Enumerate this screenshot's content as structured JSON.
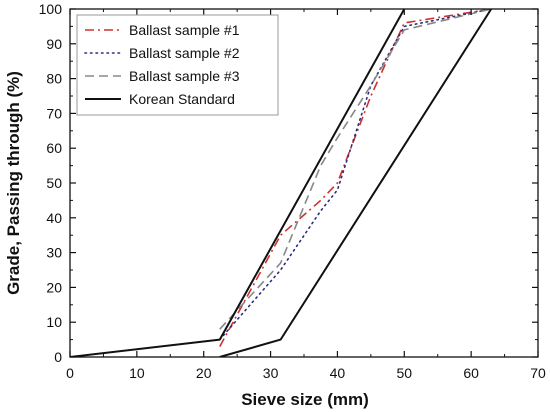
{
  "chart_data": {
    "type": "line",
    "title": "",
    "xlabel": "Sieve size (mm)",
    "ylabel": "Grade, Passing through (%)",
    "xlim": [
      0,
      70
    ],
    "ylim": [
      0,
      100
    ],
    "xticks": [
      0,
      10,
      20,
      30,
      40,
      50,
      60,
      70
    ],
    "yticks": [
      0,
      10,
      20,
      30,
      40,
      50,
      60,
      70,
      80,
      90,
      100
    ],
    "grid": false,
    "legend_position": "top-left",
    "series": [
      {
        "name": "Ballast sample #1",
        "color": "#d0312d",
        "dash": "dash-dot",
        "points": [
          [
            22.4,
            3
          ],
          [
            31.5,
            35
          ],
          [
            37.5,
            45
          ],
          [
            40,
            50
          ],
          [
            45,
            75
          ],
          [
            50,
            96
          ],
          [
            63,
            100
          ]
        ]
      },
      {
        "name": "Ballast sample #2",
        "color": "#2b2f7a",
        "dash": "dotted",
        "points": [
          [
            22.4,
            5
          ],
          [
            31.5,
            25
          ],
          [
            37.5,
            42
          ],
          [
            40,
            48
          ],
          [
            45,
            78
          ],
          [
            50,
            95
          ],
          [
            63,
            100
          ]
        ]
      },
      {
        "name": "Ballast sample #3",
        "color": "#888888",
        "dash": "dashed",
        "points": [
          [
            22.4,
            8
          ],
          [
            31.5,
            27
          ],
          [
            37.5,
            55
          ],
          [
            40,
            63
          ],
          [
            45,
            78
          ],
          [
            50,
            94
          ],
          [
            63,
            100
          ]
        ]
      },
      {
        "name": "Korean Standard",
        "color": "#111111",
        "dash": "solid",
        "lines": [
          [
            [
              0,
              0
            ],
            [
              22.4,
              5
            ],
            [
              50,
              100
            ]
          ],
          [
            [
              22.4,
              0
            ],
            [
              31.5,
              5
            ],
            [
              63,
              100
            ]
          ]
        ]
      }
    ]
  }
}
